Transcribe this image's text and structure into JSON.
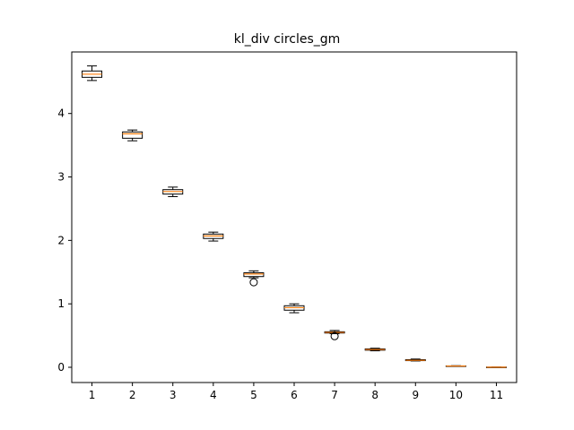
{
  "chart_data": {
    "type": "box",
    "title": "kl_div circles_gm",
    "xlabel": "",
    "ylabel": "",
    "categories": [
      "1",
      "2",
      "3",
      "4",
      "5",
      "6",
      "7",
      "8",
      "9",
      "10",
      "11"
    ],
    "yticks": [
      0,
      1,
      2,
      3,
      4
    ],
    "ylim": [
      -0.24,
      4.97
    ],
    "xlim": [
      0.5,
      11.5
    ],
    "grid": false,
    "boxes": [
      {
        "whislo": 4.52,
        "q1": 4.57,
        "med": 4.62,
        "q3": 4.67,
        "whishi": 4.75,
        "fliers": []
      },
      {
        "whislo": 3.57,
        "q1": 3.61,
        "med": 3.68,
        "q3": 3.71,
        "whishi": 3.74,
        "fliers": []
      },
      {
        "whislo": 2.69,
        "q1": 2.73,
        "med": 2.77,
        "q3": 2.8,
        "whishi": 2.84,
        "fliers": []
      },
      {
        "whislo": 1.99,
        "q1": 2.03,
        "med": 2.07,
        "q3": 2.1,
        "whishi": 2.13,
        "fliers": []
      },
      {
        "whislo": 1.41,
        "q1": 1.43,
        "med": 1.47,
        "q3": 1.49,
        "whishi": 1.52,
        "fliers": [
          1.34
        ]
      },
      {
        "whislo": 0.86,
        "q1": 0.9,
        "med": 0.94,
        "q3": 0.97,
        "whishi": 1.0,
        "fliers": []
      },
      {
        "whislo": 0.53,
        "q1": 0.54,
        "med": 0.55,
        "q3": 0.56,
        "whishi": 0.58,
        "fliers": [
          0.49
        ]
      },
      {
        "whislo": 0.26,
        "q1": 0.27,
        "med": 0.28,
        "q3": 0.29,
        "whishi": 0.3,
        "fliers": []
      },
      {
        "whislo": 0.1,
        "q1": 0.105,
        "med": 0.11,
        "q3": 0.12,
        "whishi": 0.13,
        "fliers": []
      },
      {
        "whislo": 0.015,
        "q1": 0.018,
        "med": 0.02,
        "q3": 0.022,
        "whishi": 0.025,
        "fliers": []
      },
      {
        "whislo": 0.0,
        "q1": 0.001,
        "med": 0.002,
        "q3": 0.003,
        "whishi": 0.004,
        "fliers": []
      }
    ],
    "colors": {
      "box": "#000000",
      "median": "#ff7f0e",
      "axes": "#000000",
      "background": "#ffffff"
    }
  }
}
